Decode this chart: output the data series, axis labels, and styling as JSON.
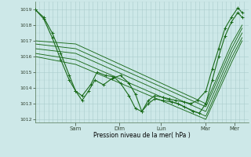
{
  "bg_color": "#cde8e8",
  "grid_color": "#aacccc",
  "line_color": "#1a6b1a",
  "ylabel": "Pression niveau de la mer( hPa )",
  "ylim": [
    1011.8,
    1019.5
  ],
  "yticks": [
    1012,
    1013,
    1014,
    1015,
    1016,
    1017,
    1018,
    1019
  ],
  "day_labels": [
    "Sam",
    "Dim",
    "Lun",
    "Mar",
    "Mer"
  ],
  "series": [
    {
      "has_markers": true,
      "x": [
        0.0,
        0.04,
        0.08,
        0.12,
        0.16,
        0.19,
        0.22,
        0.25,
        0.28,
        0.32,
        0.36,
        0.4,
        0.44,
        0.47,
        0.5,
        0.53,
        0.56,
        0.6,
        0.63,
        0.66,
        0.7,
        0.73,
        0.76,
        0.8,
        0.83,
        0.86,
        0.89,
        0.92,
        0.95,
        0.97
      ],
      "y": [
        1019.0,
        1018.4,
        1017.2,
        1015.8,
        1014.5,
        1013.8,
        1013.2,
        1013.8,
        1014.5,
        1014.2,
        1014.6,
        1014.8,
        1014.3,
        1013.6,
        1012.5,
        1013.2,
        1013.5,
        1013.4,
        1013.3,
        1013.2,
        1013.1,
        1013.0,
        1013.2,
        1013.8,
        1015.2,
        1016.5,
        1017.8,
        1018.5,
        1019.1,
        1018.8
      ]
    },
    {
      "has_markers": true,
      "x": [
        0.0,
        0.04,
        0.08,
        0.12,
        0.16,
        0.19,
        0.22,
        0.26,
        0.29,
        0.33,
        0.37,
        0.4,
        0.44,
        0.47,
        0.5,
        0.53,
        0.56,
        0.6,
        0.64,
        0.67,
        0.7,
        0.74,
        0.77,
        0.8,
        0.83,
        0.86,
        0.89,
        0.92,
        0.95,
        0.97
      ],
      "y": [
        1019.0,
        1018.5,
        1017.5,
        1016.2,
        1014.8,
        1013.8,
        1013.5,
        1014.2,
        1015.0,
        1014.8,
        1014.7,
        1014.3,
        1013.5,
        1012.7,
        1012.5,
        1013.0,
        1013.3,
        1013.2,
        1013.1,
        1013.0,
        1012.8,
        1012.5,
        1012.4,
        1013.0,
        1014.5,
        1016.0,
        1017.3,
        1018.2,
        1018.8,
        1018.5
      ]
    },
    {
      "has_markers": false,
      "x": [
        0.0,
        0.19,
        0.8,
        0.92,
        0.97
      ],
      "y": [
        1017.0,
        1016.8,
        1013.0,
        1016.8,
        1018.0
      ]
    },
    {
      "has_markers": false,
      "x": [
        0.0,
        0.19,
        0.8,
        0.92,
        0.97
      ],
      "y": [
        1016.8,
        1016.5,
        1012.8,
        1016.5,
        1017.8
      ]
    },
    {
      "has_markers": false,
      "x": [
        0.0,
        0.19,
        0.8,
        0.92,
        0.97
      ],
      "y": [
        1016.5,
        1016.2,
        1012.5,
        1016.2,
        1017.5
      ]
    },
    {
      "has_markers": false,
      "x": [
        0.0,
        0.19,
        0.8,
        0.92,
        0.97
      ],
      "y": [
        1016.2,
        1015.8,
        1012.2,
        1015.9,
        1017.2
      ]
    },
    {
      "has_markers": false,
      "x": [
        0.0,
        0.19,
        0.8,
        0.92,
        0.97
      ],
      "y": [
        1016.0,
        1015.5,
        1012.0,
        1015.6,
        1017.0
      ]
    }
  ]
}
